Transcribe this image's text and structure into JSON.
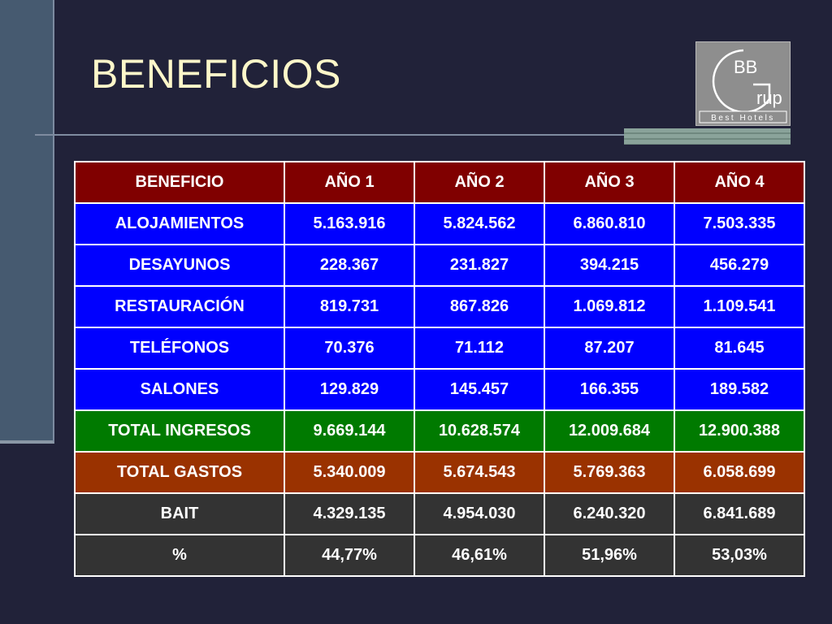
{
  "slide": {
    "title": "BENEFICIOS"
  },
  "logo": {
    "monogram": "BB",
    "letter": "G",
    "word": "rup",
    "tagline": "Best Hotels"
  },
  "colors": {
    "background": "#212239",
    "title": "#fdf7c9",
    "header_row": "#800000",
    "revenue_rows": "#0000ff",
    "total_income_row": "#007a00",
    "total_expense_row": "#9a3200",
    "result_rows": "#333333"
  },
  "table": {
    "headers": [
      "BENEFICIO",
      "AÑO 1",
      "AÑO 2",
      "AÑO 3",
      "AÑO 4"
    ],
    "rows": [
      {
        "label": "ALOJAMIENTOS",
        "values": [
          "5.163.916",
          "5.824.562",
          "6.860.810",
          "7.503.335"
        ]
      },
      {
        "label": "DESAYUNOS",
        "values": [
          "228.367",
          "231.827",
          "394.215",
          "456.279"
        ]
      },
      {
        "label": "RESTAURACIÓN",
        "values": [
          "819.731",
          "867.826",
          "1.069.812",
          "1.109.541"
        ]
      },
      {
        "label": "TELÉFONOS",
        "values": [
          "70.376",
          "71.112",
          "87.207",
          "81.645"
        ]
      },
      {
        "label": "SALONES",
        "values": [
          "129.829",
          "145.457",
          "166.355",
          "189.582"
        ]
      },
      {
        "label": "TOTAL INGRESOS",
        "values": [
          "9.669.144",
          "10.628.574",
          "12.009.684",
          "12.900.388"
        ]
      },
      {
        "label": "TOTAL GASTOS",
        "values": [
          "5.340.009",
          "5.674.543",
          "5.769.363",
          "6.058.699"
        ]
      },
      {
        "label": "BAIT",
        "values": [
          "4.329.135",
          "4.954.030",
          "6.240.320",
          "6.841.689"
        ]
      },
      {
        "label": "%",
        "values": [
          "44,77%",
          "46,61%",
          "51,96%",
          "53,03%"
        ]
      }
    ]
  }
}
